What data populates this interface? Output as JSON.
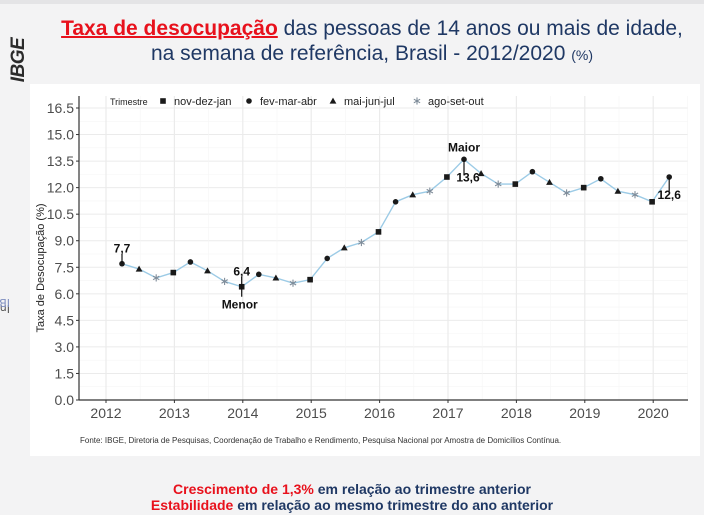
{
  "logo": "IBGE",
  "title": {
    "highlight": "Taxa de desocupação",
    "line1_rest": " das pessoas de 14 anos ou mais de idade,",
    "line2": "na semana de referência, Brasil - 2012/2020 ",
    "unit": "(%)"
  },
  "side_label": {
    "text": "Instituto Brasileiro de Geografia e Estatística",
    "abbr": "IBGE"
  },
  "source": "Fonte: IBGE, Diretoria de Pesquisas, Coordenação de Trabalho e Rendimento, Pesquisa Nacional por Amostra de Domicílios Contínua.",
  "summary": {
    "line1_red": "Crescimento de 1,3%",
    "line1_rest": " em relação ao trimestre anterior",
    "line2_red": "Estabilidade",
    "line2_rest": " em relação ao mesmo trimestre do ano anterior"
  },
  "colors": {
    "accent_red": "#e8111c",
    "title_blue": "#1f3864",
    "line": "#9ccbe6",
    "marker": "#1a1a1a",
    "asterisk": "#7f8c99"
  },
  "chart_data": {
    "type": "line",
    "title": "Taxa de desocupação das pessoas de 14 anos ou mais de idade, na semana de referência, Brasil - 2012/2020 (%)",
    "xlabel": "",
    "ylabel": "Taxa de Desocupação (%)",
    "ylim": [
      0,
      16.5
    ],
    "yticks": [
      "0.0",
      "1.5",
      "3.0",
      "4.5",
      "6.0",
      "7.5",
      "9.0",
      "10.5",
      "12.0",
      "13.5",
      "15.0",
      "16.5"
    ],
    "xticks": [
      "2012",
      "2013",
      "2014",
      "2015",
      "2016",
      "2017",
      "2018",
      "2019",
      "2020"
    ],
    "grid": true,
    "legend": {
      "title": "Trimestre",
      "placement": "top-left",
      "entries": [
        {
          "label": "nov-dez-jan",
          "shape": "square"
        },
        {
          "label": "fev-mar-abr",
          "shape": "circle"
        },
        {
          "label": "mai-jun-jul",
          "shape": "triangle"
        },
        {
          "label": "ago-set-out",
          "shape": "asterisk"
        }
      ]
    },
    "points": [
      {
        "period": "fev-mar-abr 2012",
        "shape": "circle",
        "value": 7.7
      },
      {
        "period": "mai-jun-jul 2012",
        "shape": "triangle",
        "value": 7.4
      },
      {
        "period": "ago-set-out 2012",
        "shape": "asterisk",
        "value": 6.9
      },
      {
        "period": "nov-dez-jan 2013",
        "shape": "square",
        "value": 7.2
      },
      {
        "period": "fev-mar-abr 2013",
        "shape": "circle",
        "value": 7.8
      },
      {
        "period": "mai-jun-jul 2013",
        "shape": "triangle",
        "value": 7.3
      },
      {
        "period": "ago-set-out 2013",
        "shape": "asterisk",
        "value": 6.7
      },
      {
        "period": "nov-dez-jan 2014",
        "shape": "square",
        "value": 6.4
      },
      {
        "period": "fev-mar-abr 2014",
        "shape": "circle",
        "value": 7.1
      },
      {
        "period": "mai-jun-jul 2014",
        "shape": "triangle",
        "value": 6.9
      },
      {
        "period": "ago-set-out 2014",
        "shape": "asterisk",
        "value": 6.6
      },
      {
        "period": "nov-dez-jan 2015",
        "shape": "square",
        "value": 6.8
      },
      {
        "period": "fev-mar-abr 2015",
        "shape": "circle",
        "value": 8.0
      },
      {
        "period": "mai-jun-jul 2015",
        "shape": "triangle",
        "value": 8.6
      },
      {
        "period": "ago-set-out 2015",
        "shape": "asterisk",
        "value": 8.9
      },
      {
        "period": "nov-dez-jan 2016",
        "shape": "square",
        "value": 9.5
      },
      {
        "period": "fev-mar-abr 2016",
        "shape": "circle",
        "value": 11.2
      },
      {
        "period": "mai-jun-jul 2016",
        "shape": "triangle",
        "value": 11.6
      },
      {
        "period": "ago-set-out 2016",
        "shape": "asterisk",
        "value": 11.8
      },
      {
        "period": "nov-dez-jan 2017",
        "shape": "square",
        "value": 12.6
      },
      {
        "period": "fev-mar-abr 2017",
        "shape": "circle",
        "value": 13.6
      },
      {
        "period": "mai-jun-jul 2017",
        "shape": "triangle",
        "value": 12.8
      },
      {
        "period": "ago-set-out 2017",
        "shape": "asterisk",
        "value": 12.2
      },
      {
        "period": "nov-dez-jan 2018",
        "shape": "square",
        "value": 12.2
      },
      {
        "period": "fev-mar-abr 2018",
        "shape": "circle",
        "value": 12.9
      },
      {
        "period": "mai-jun-jul 2018",
        "shape": "triangle",
        "value": 12.3
      },
      {
        "period": "ago-set-out 2018",
        "shape": "asterisk",
        "value": 11.7
      },
      {
        "period": "nov-dez-jan 2019",
        "shape": "square",
        "value": 12.0
      },
      {
        "period": "fev-mar-abr 2019",
        "shape": "circle",
        "value": 12.5
      },
      {
        "period": "mai-jun-jul 2019",
        "shape": "triangle",
        "value": 11.8
      },
      {
        "period": "ago-set-out 2019",
        "shape": "asterisk",
        "value": 11.6
      },
      {
        "period": "nov-dez-jan 2020",
        "shape": "square",
        "value": 11.2
      },
      {
        "period": "fev-mar-abr 2020",
        "shape": "circle",
        "value": 12.6
      }
    ],
    "annotations": [
      {
        "point_index": 0,
        "text": "7,7",
        "label": ""
      },
      {
        "point_index": 7,
        "text": "6,4",
        "label": "Menor"
      },
      {
        "point_index": 20,
        "text": "13,6",
        "label": "Maior"
      },
      {
        "point_index": 32,
        "text": "12,6",
        "label": ""
      }
    ]
  }
}
